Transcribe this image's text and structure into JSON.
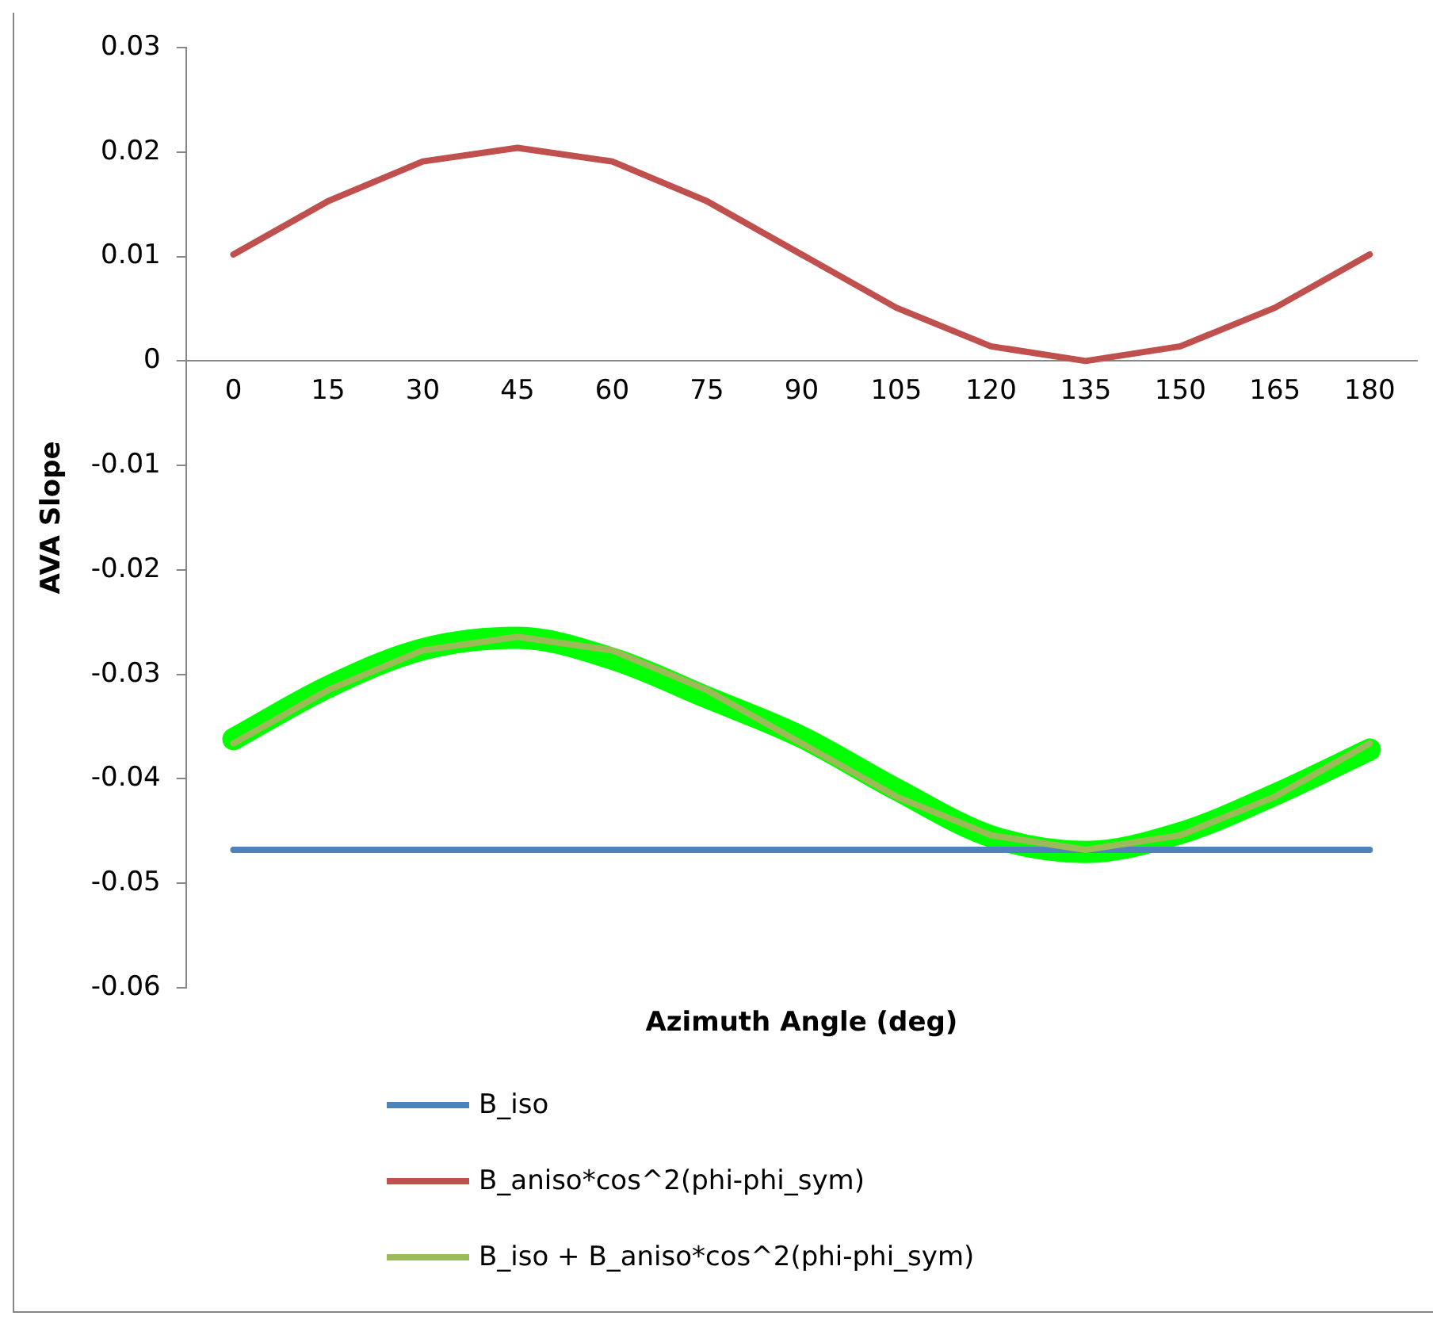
{
  "chart_data": {
    "type": "line",
    "xlabel": "Azimuth Angle (deg)",
    "ylabel": "AVA Slope",
    "categories": [
      "0",
      "15",
      "30",
      "45",
      "60",
      "75",
      "90",
      "105",
      "120",
      "135",
      "150",
      "165",
      "180"
    ],
    "ylim": [
      -0.06,
      0.03
    ],
    "yticks": [
      -0.06,
      -0.05,
      -0.04,
      -0.03,
      -0.02,
      -0.01,
      0,
      0.01,
      0.02,
      0.03
    ],
    "grid": false,
    "legend": "bottom",
    "marker": "none",
    "line_style": "solid",
    "series": [
      {
        "name": "B_iso",
        "color": "#4f81bd",
        "values": [
          -0.0468,
          -0.0468,
          -0.0468,
          -0.0468,
          -0.0468,
          -0.0468,
          -0.0468,
          -0.0468,
          -0.0468,
          -0.0468,
          -0.0468,
          -0.0468,
          -0.0468
        ]
      },
      {
        "name": "B_aniso*cos^2(phi-phi_sym)",
        "color": "#c0504d",
        "values": [
          0.0102,
          0.0153,
          0.0191,
          0.0204,
          0.0191,
          0.0153,
          0.0102,
          0.0051,
          0.0014,
          0,
          0.0014,
          0.0051,
          0.0102
        ]
      },
      {
        "name": "B_iso + B_aniso*cos^2(phi-phi_sym)",
        "color": "#9bbb59",
        "values": [
          -0.0366,
          -0.0315,
          -0.0277,
          -0.0264,
          -0.0277,
          -0.0315,
          -0.0366,
          -0.0417,
          -0.0454,
          -0.0468,
          -0.0454,
          -0.0417,
          -0.0366
        ]
      },
      {
        "color": "#00ff00",
        "values": [
          -0.0362,
          -0.0312,
          -0.0276,
          -0.0265,
          -0.0285,
          -0.0322,
          -0.036,
          -0.041,
          -0.0455,
          -0.047,
          -0.0452,
          -0.0415,
          -0.0372
        ]
      }
    ]
  }
}
